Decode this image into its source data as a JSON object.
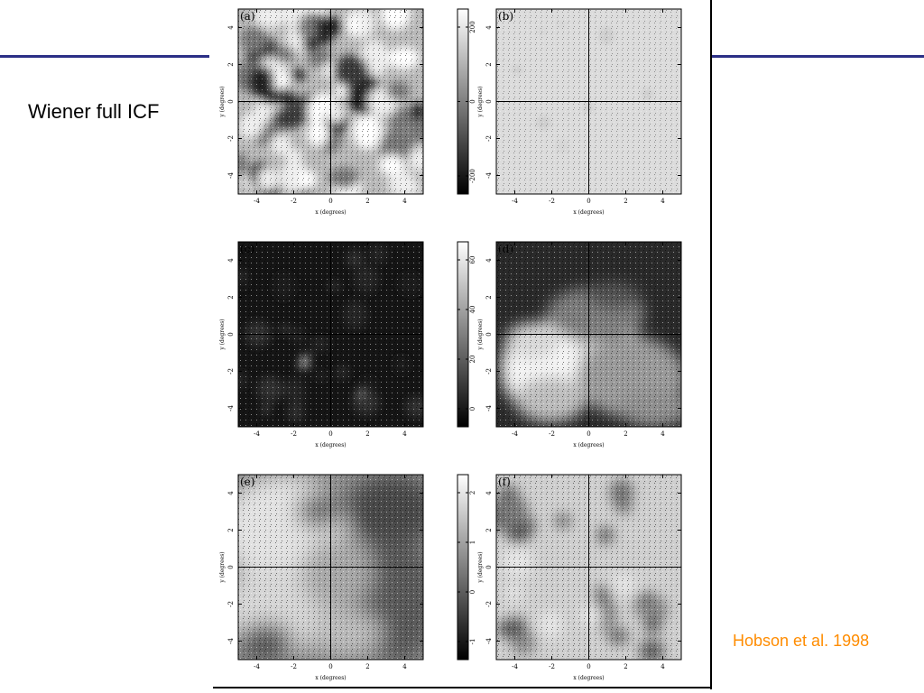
{
  "slide": {
    "title": "Wiener full ICF",
    "citation": "Hobson et al. 1998",
    "accent_color": "#2b2f86",
    "citation_color": "#ff8c00"
  },
  "figure": {
    "x_ticks": [
      "-4",
      "-2",
      "0",
      "2",
      "4"
    ],
    "y_ticks": [
      "4",
      "2",
      "0",
      "-2",
      "-4"
    ],
    "xlabel_ab": "x (degrees)",
    "xlabel_rest": "x (degrees)",
    "ylabel": "y (degrees)",
    "panels": [
      {
        "id": "a",
        "label": "(a)",
        "colorbar": [
          "200",
          "0",
          "-200"
        ],
        "tone": "mottled"
      },
      {
        "id": "b",
        "label": "(b)",
        "colorbar": [
          "5",
          "0",
          "-5",
          "-10"
        ],
        "tone": "light"
      },
      {
        "id": "c",
        "label": "(c)",
        "colorbar": [
          "60",
          "40",
          "20",
          "0"
        ],
        "tone": "dark"
      },
      {
        "id": "d",
        "label": "(d)",
        "colorbar": [
          "600",
          "400",
          "200",
          "0",
          "-200"
        ],
        "tone": "cloud"
      },
      {
        "id": "e",
        "label": "(e)",
        "colorbar": [
          "2",
          "1",
          "0",
          "-1"
        ],
        "tone": "gradient"
      },
      {
        "id": "f",
        "label": "(f)",
        "colorbar": [
          "0.2",
          "0.1",
          "0",
          "-0.1",
          "-0.2"
        ],
        "tone": "blobs"
      }
    ]
  }
}
